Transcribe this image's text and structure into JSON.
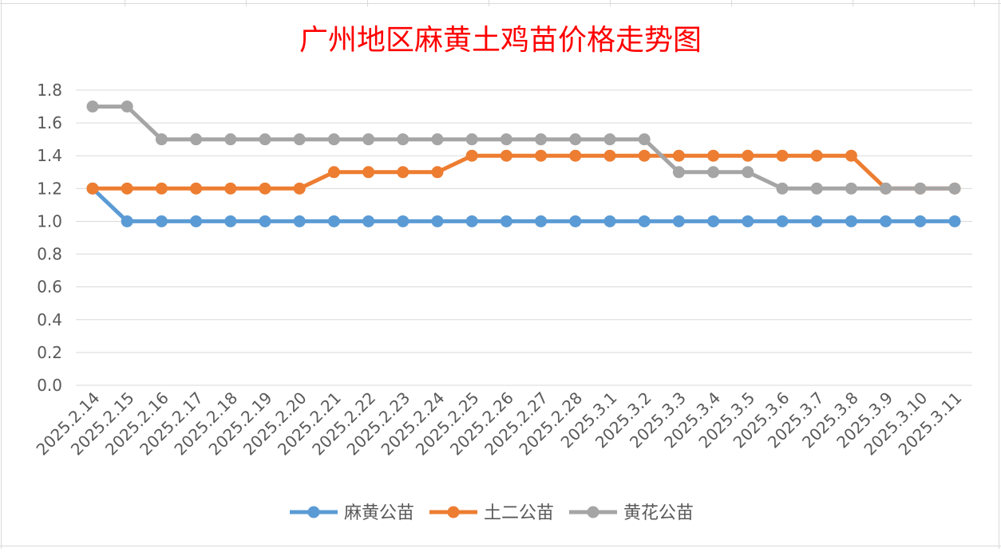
{
  "chart_data": {
    "type": "line",
    "title": "广州地区麻黄土鸡苗价格走势图",
    "title_color": "#ff0000",
    "categories": [
      "2025.2.14",
      "2025.2.15",
      "2025.2.16",
      "2025.2.17",
      "2025.2.18",
      "2025.2.19",
      "2025.2.20",
      "2025.2.21",
      "2025.2.22",
      "2025.2.23",
      "2025.2.24",
      "2025.2.25",
      "2025.2.26",
      "2025.2.27",
      "2025.2.28",
      "2025.3.1",
      "2025.3.2",
      "2025.3.3",
      "2025.3.4",
      "2025.3.5",
      "2025.3.6",
      "2025.3.7",
      "2025.3.8",
      "2025.3.9",
      "2025.3.10",
      "2025.3.11"
    ],
    "series": [
      {
        "name": "麻黄公苗",
        "color": "#5b9bd5",
        "values": [
          1.2,
          1.0,
          1.0,
          1.0,
          1.0,
          1.0,
          1.0,
          1.0,
          1.0,
          1.0,
          1.0,
          1.0,
          1.0,
          1.0,
          1.0,
          1.0,
          1.0,
          1.0,
          1.0,
          1.0,
          1.0,
          1.0,
          1.0,
          1.0,
          1.0,
          1.0
        ]
      },
      {
        "name": "土二公苗",
        "color": "#ed7d31",
        "values": [
          1.2,
          1.2,
          1.2,
          1.2,
          1.2,
          1.2,
          1.2,
          1.3,
          1.3,
          1.3,
          1.3,
          1.4,
          1.4,
          1.4,
          1.4,
          1.4,
          1.4,
          1.4,
          1.4,
          1.4,
          1.4,
          1.4,
          1.4,
          1.2,
          1.2,
          1.2
        ]
      },
      {
        "name": "黄花公苗",
        "color": "#a5a5a5",
        "values": [
          1.7,
          1.7,
          1.5,
          1.5,
          1.5,
          1.5,
          1.5,
          1.5,
          1.5,
          1.5,
          1.5,
          1.5,
          1.5,
          1.5,
          1.5,
          1.5,
          1.5,
          1.3,
          1.3,
          1.3,
          1.2,
          1.2,
          1.2,
          1.2,
          1.2,
          1.2
        ]
      }
    ],
    "y_ticks": [
      "1.8",
      "1.6",
      "1.4",
      "1.2",
      "1.0",
      "0.8",
      "0.6",
      "0.4",
      "0.2",
      "0.0"
    ],
    "ylim": [
      0,
      1.8
    ],
    "grid": true,
    "legend_position": "bottom"
  }
}
